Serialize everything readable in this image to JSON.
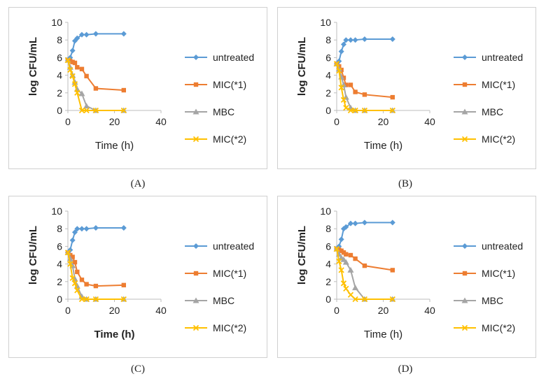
{
  "chart_data": [
    {
      "type": "line",
      "panel": "A",
      "caption": "(A)",
      "xlabel": "Time (h)",
      "ylabel": "log CFU/mL",
      "xlim": [
        0,
        40
      ],
      "ylim": [
        0,
        10
      ],
      "xticks": [
        "0",
        "20",
        "40"
      ],
      "yticks": [
        "0",
        "2",
        "4",
        "6",
        "8",
        "10"
      ],
      "xlabel_bold": false,
      "series": [
        {
          "name": "untreated",
          "color": "#5B9BD5",
          "marker": "diamond",
          "x": [
            0,
            1,
            2,
            3,
            4,
            6,
            8,
            12,
            24
          ],
          "y": [
            5.7,
            6.0,
            6.8,
            7.9,
            8.2,
            8.6,
            8.6,
            8.7,
            8.7
          ]
        },
        {
          "name": "MIC(*1)",
          "color": "#ED7D31",
          "marker": "square",
          "x": [
            0,
            1,
            2,
            3,
            4,
            6,
            8,
            12,
            24
          ],
          "y": [
            5.7,
            5.6,
            5.5,
            5.4,
            4.9,
            4.7,
            3.9,
            2.5,
            2.3
          ]
        },
        {
          "name": "MBC",
          "color": "#A5A5A5",
          "marker": "triangle",
          "x": [
            0,
            1,
            2,
            3,
            4,
            6,
            8,
            12,
            24
          ],
          "y": [
            5.7,
            4.9,
            4.0,
            3.2,
            2.4,
            1.9,
            0.5,
            0.0,
            0.0
          ]
        },
        {
          "name": "MIC(*2)",
          "color": "#FFC000",
          "marker": "x",
          "x": [
            0,
            1,
            2,
            3,
            4,
            6,
            8,
            12,
            24
          ],
          "y": [
            5.7,
            4.6,
            3.9,
            3.0,
            2.0,
            0.0,
            0.0,
            0.0,
            0.0
          ]
        }
      ]
    },
    {
      "type": "line",
      "panel": "B",
      "caption": "(B)",
      "xlabel": "Time (h)",
      "ylabel": "log CFU/mL",
      "xlim": [
        0,
        40
      ],
      "ylim": [
        0,
        10
      ],
      "xticks": [
        "0",
        "20",
        "40"
      ],
      "yticks": [
        "0",
        "2",
        "4",
        "6",
        "8",
        "10"
      ],
      "xlabel_bold": false,
      "series": [
        {
          "name": "untreated",
          "color": "#5B9BD5",
          "marker": "diamond",
          "x": [
            0,
            1,
            2,
            3,
            4,
            6,
            8,
            12,
            24
          ],
          "y": [
            5.3,
            5.6,
            6.7,
            7.5,
            8.0,
            8.0,
            8.0,
            8.1,
            8.1
          ]
        },
        {
          "name": "MIC(*1)",
          "color": "#ED7D31",
          "marker": "square",
          "x": [
            0,
            1,
            2,
            3,
            4,
            6,
            8,
            12,
            24
          ],
          "y": [
            5.3,
            5.0,
            4.6,
            3.7,
            2.9,
            2.9,
            2.1,
            1.8,
            1.5
          ]
        },
        {
          "name": "MBC",
          "color": "#A5A5A5",
          "marker": "triangle",
          "x": [
            0,
            1,
            2,
            3,
            4,
            6,
            8,
            12,
            24
          ],
          "y": [
            5.3,
            4.7,
            3.8,
            2.9,
            1.5,
            0.3,
            0.0,
            0.0,
            0.0
          ]
        },
        {
          "name": "MIC(*2)",
          "color": "#FFC000",
          "marker": "x",
          "x": [
            0,
            1,
            2,
            3,
            4,
            6,
            8,
            12,
            24
          ],
          "y": [
            5.3,
            4.5,
            2.6,
            1.2,
            0.3,
            0.0,
            0.0,
            0.0,
            0.0
          ]
        }
      ]
    },
    {
      "type": "line",
      "panel": "C",
      "caption": "(C)",
      "xlabel": "Time (h)",
      "ylabel": "log CFU/mL",
      "xlim": [
        0,
        40
      ],
      "ylim": [
        0,
        10
      ],
      "xticks": [
        "0",
        "20",
        "40"
      ],
      "yticks": [
        "0",
        "2",
        "4",
        "6",
        "8",
        "10"
      ],
      "xlabel_bold": true,
      "series": [
        {
          "name": "untreated",
          "color": "#5B9BD5",
          "marker": "diamond",
          "x": [
            0,
            1,
            2,
            3,
            4,
            6,
            8,
            12,
            24
          ],
          "y": [
            5.3,
            5.6,
            6.7,
            7.6,
            8.0,
            8.0,
            8.0,
            8.1,
            8.1
          ]
        },
        {
          "name": "MIC(*1)",
          "color": "#ED7D31",
          "marker": "square",
          "x": [
            0,
            1,
            2,
            3,
            4,
            6,
            8,
            12,
            24
          ],
          "y": [
            5.3,
            5.0,
            4.8,
            4.2,
            3.1,
            2.2,
            1.7,
            1.5,
            1.6
          ]
        },
        {
          "name": "MBC",
          "color": "#A5A5A5",
          "marker": "triangle",
          "x": [
            0,
            1,
            2,
            3,
            4,
            6,
            8,
            12,
            24
          ],
          "y": [
            5.3,
            4.6,
            3.8,
            2.3,
            1.5,
            0.3,
            0.0,
            0.0,
            0.0
          ]
        },
        {
          "name": "MIC(*2)",
          "color": "#FFC000",
          "marker": "x",
          "x": [
            0,
            1,
            2,
            3,
            4,
            6,
            8,
            12,
            24
          ],
          "y": [
            5.3,
            4.0,
            2.4,
            1.8,
            1.0,
            0.0,
            0.0,
            0.0,
            0.0
          ]
        }
      ]
    },
    {
      "type": "line",
      "panel": "D",
      "caption": "(D)",
      "xlabel": "Time (h)",
      "ylabel": "log CFU/mL",
      "xlim": [
        0,
        40
      ],
      "ylim": [
        0,
        10
      ],
      "xticks": [
        "0",
        "20",
        "40"
      ],
      "yticks": [
        "0",
        "2",
        "4",
        "6",
        "8",
        "10"
      ],
      "xlabel_bold": false,
      "series": [
        {
          "name": "untreated",
          "color": "#5B9BD5",
          "marker": "diamond",
          "x": [
            0,
            1,
            2,
            3,
            4,
            6,
            8,
            12,
            24
          ],
          "y": [
            5.7,
            6.0,
            6.8,
            8.0,
            8.2,
            8.6,
            8.6,
            8.7,
            8.7
          ]
        },
        {
          "name": "MIC(*1)",
          "color": "#ED7D31",
          "marker": "square",
          "x": [
            0,
            1,
            2,
            3,
            4,
            6,
            8,
            12,
            24
          ],
          "y": [
            5.7,
            5.6,
            5.5,
            5.3,
            5.1,
            5.0,
            4.6,
            3.8,
            3.3
          ]
        },
        {
          "name": "MBC",
          "color": "#A5A5A5",
          "marker": "triangle",
          "x": [
            0,
            1,
            2,
            3,
            4,
            6,
            8,
            12,
            24
          ],
          "y": [
            5.7,
            5.1,
            4.7,
            4.5,
            4.2,
            3.3,
            1.3,
            0.0,
            0.0
          ]
        },
        {
          "name": "MIC(*2)",
          "color": "#FFC000",
          "marker": "x",
          "x": [
            0,
            1,
            2,
            3,
            4,
            6,
            8,
            12,
            24
          ],
          "y": [
            5.7,
            4.3,
            3.3,
            1.8,
            1.2,
            0.5,
            0.0,
            0.0,
            0.0
          ]
        }
      ]
    }
  ]
}
